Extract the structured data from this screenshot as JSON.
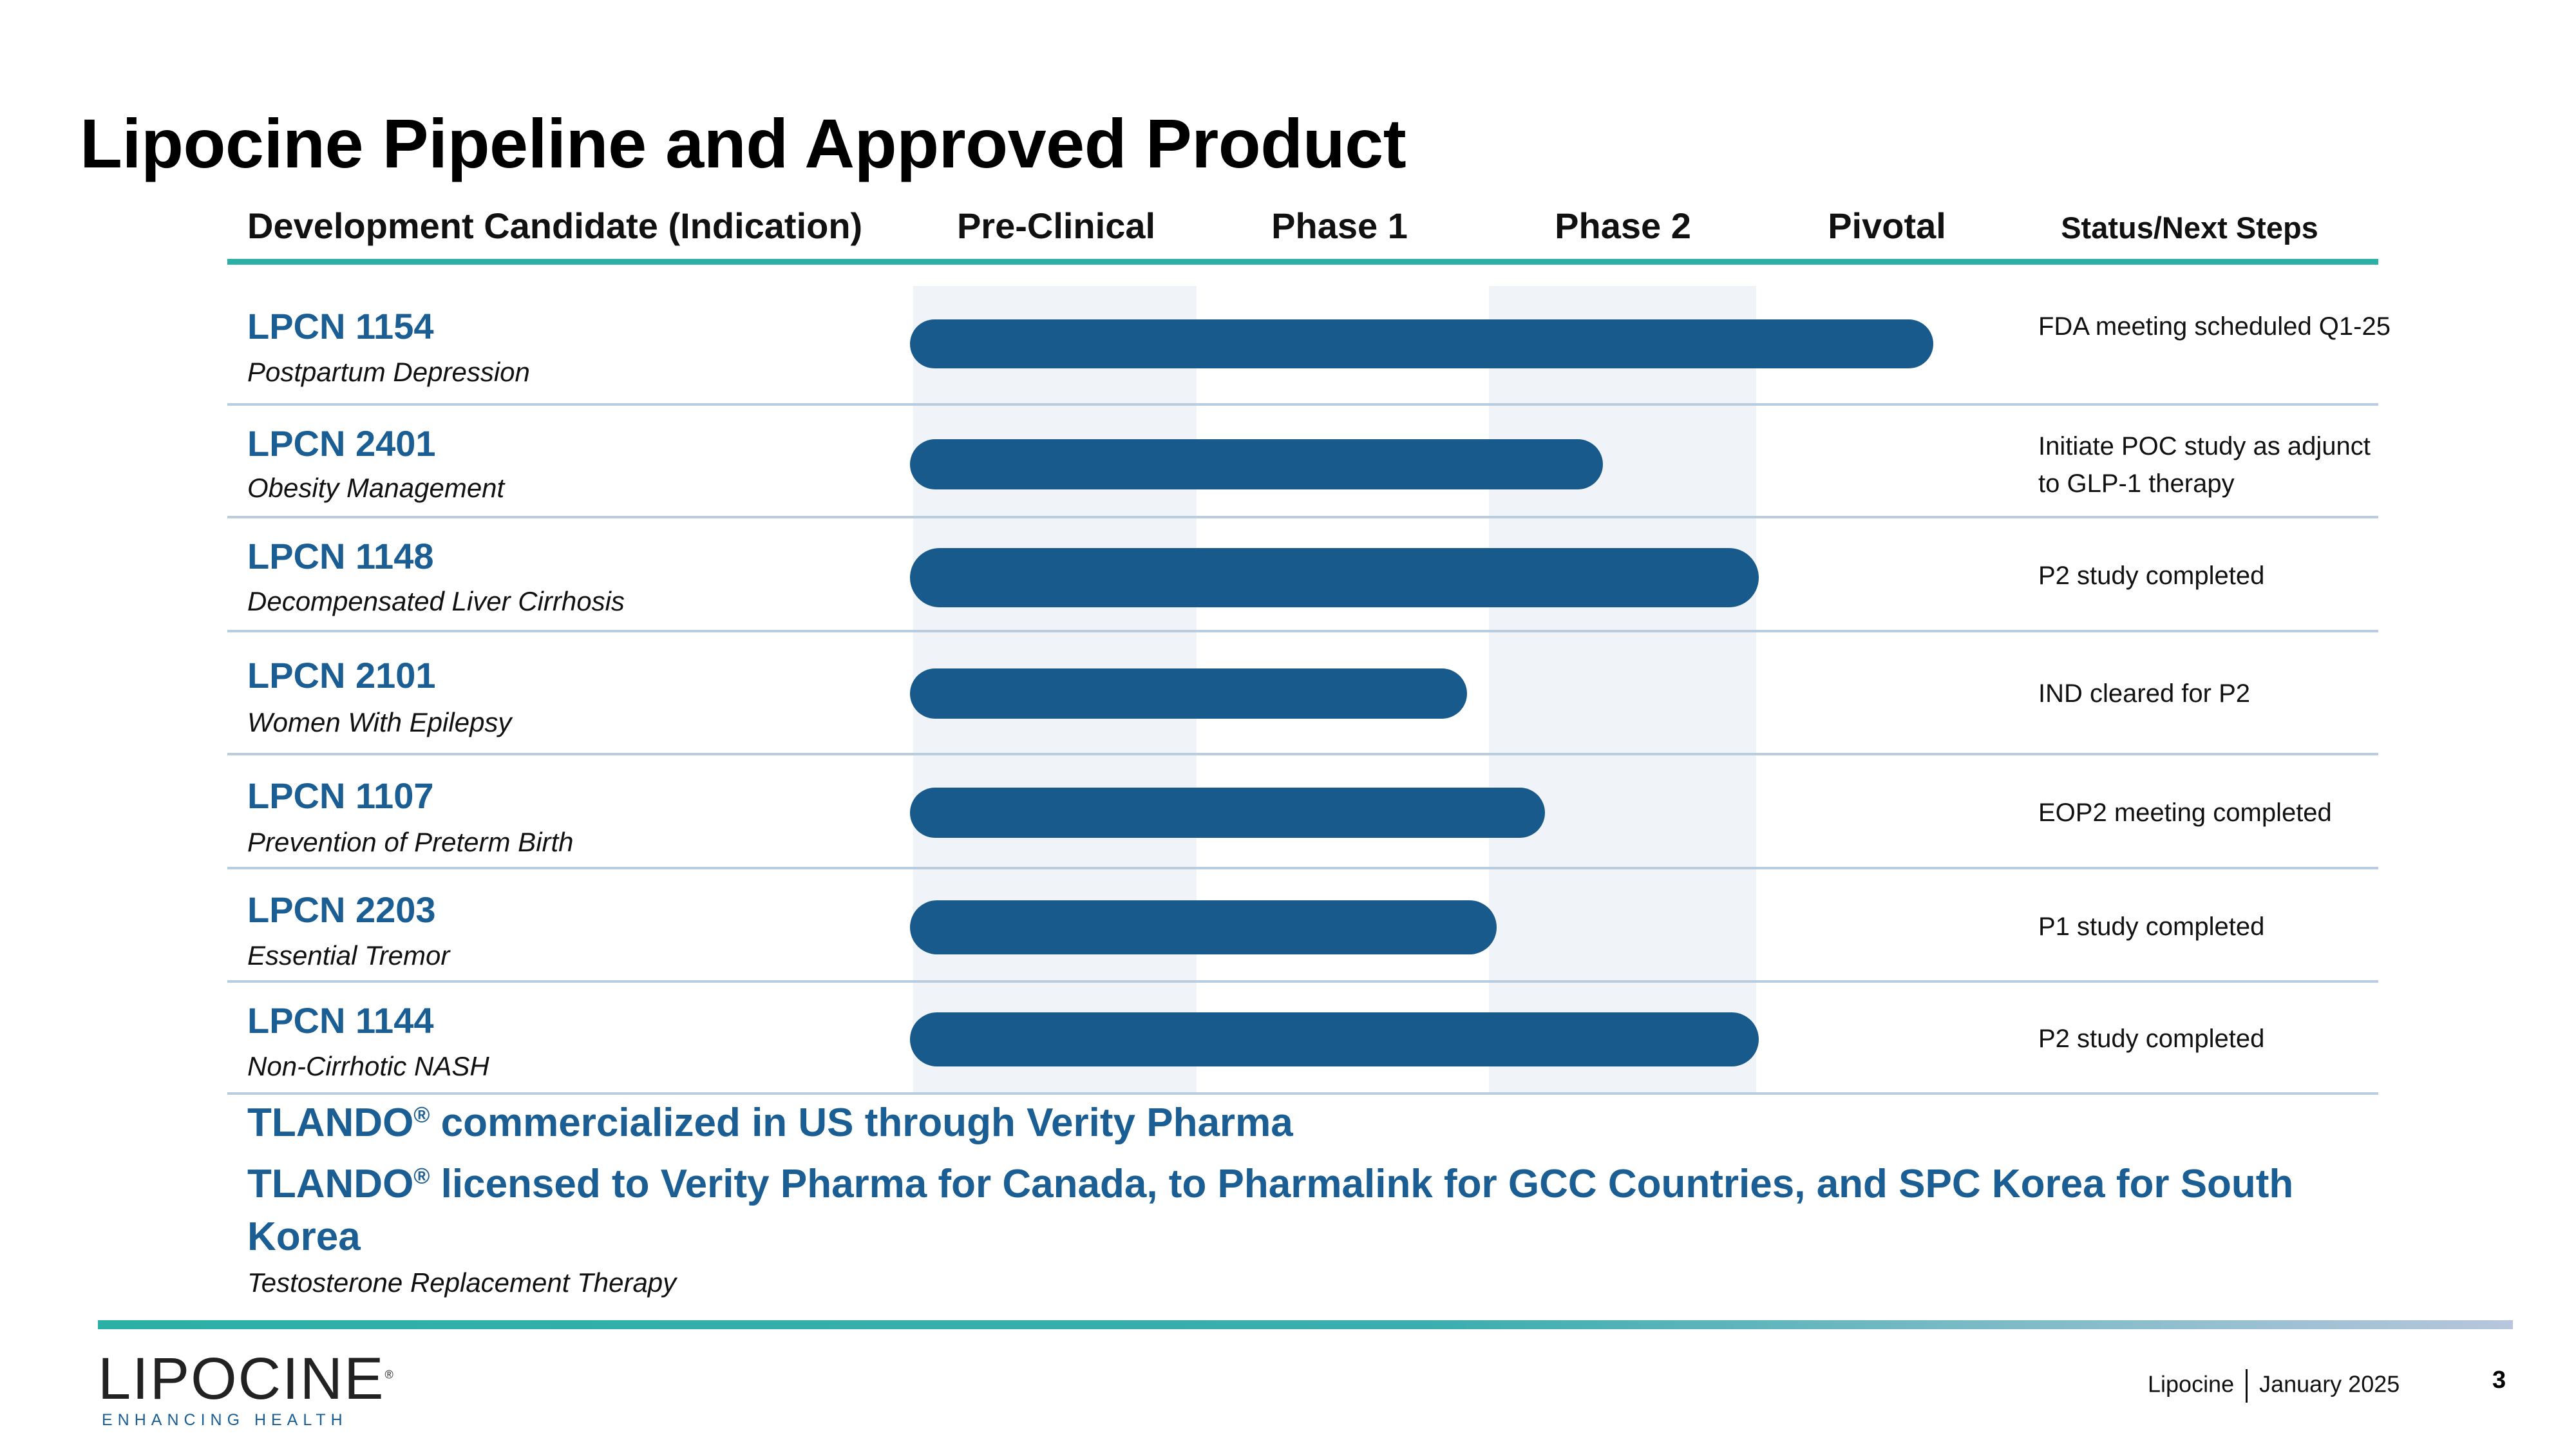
{
  "title": "Lipocine Pipeline and Approved Product",
  "table": {
    "headers": {
      "candidate": "Development Candidate (Indication)",
      "pre_clinical": "Pre-Clinical",
      "phase1": "Phase 1",
      "phase2": "Phase 2",
      "pivotal": "Pivotal",
      "status": "Status/Next Steps"
    },
    "rows": [
      {
        "name": "LPCN 1154",
        "indication": "Postpartum Depression",
        "status": "FDA meeting scheduled Q1-25",
        "progress": 0.79
      },
      {
        "name": "LPCN 2401",
        "indication": "Obesity Management",
        "status": "Initiate POC study as adjunct to GLP-1 therapy",
        "progress": 0.535
      },
      {
        "name": "LPCN 1148",
        "indication": "Decompensated Liver Cirrhosis",
        "status": "P2 study completed",
        "progress": 0.655
      },
      {
        "name": "LPCN 2101",
        "indication": "Women With Epilepsy",
        "status": "IND cleared for P2",
        "progress": 0.43
      },
      {
        "name": "LPCN 1107",
        "indication": "Prevention of Preterm Birth",
        "status": "EOP2 meeting completed",
        "progress": 0.49
      },
      {
        "name": "LPCN 2203",
        "indication": "Essential Tremor",
        "status": "P1 study completed",
        "progress": 0.453
      },
      {
        "name": "LPCN 1144",
        "indication": "Non-Cirrhotic NASH",
        "status": "P2 study completed",
        "progress": 0.655
      }
    ]
  },
  "tlando": {
    "brand": "TLANDO",
    "reg_mark": "®",
    "line1_rest": " commercialized in US through Verity Pharma",
    "line2_rest": " licensed to Verity Pharma for Canada,  to Pharmalink for GCC Countries, and SPC Korea for South Korea",
    "indication": "Testosterone Replacement Therapy"
  },
  "footer": {
    "logo_word": "LIPOCINE",
    "logo_mark": "®",
    "logo_tagline": "ENHANCING HEALTH",
    "company": "Lipocine",
    "date": "January 2025",
    "page": "3"
  },
  "colors": {
    "accent": "#2bb0a6",
    "brand_blue": "#1b5e94",
    "bar": "#185a8b",
    "band": "#f0f4f8"
  }
}
